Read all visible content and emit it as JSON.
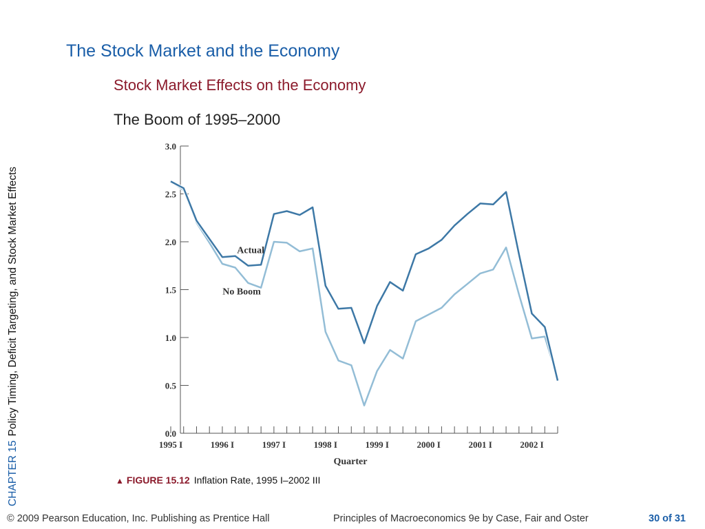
{
  "slide": {
    "title": "The Stock Market and the Economy",
    "section": "Stock Market Effects on the Economy",
    "subsection": "The Boom of 1995–2000",
    "sidebar": {
      "chapter": "CHAPTER 15",
      "chapter_title": "Policy Timing, Deficit Targeting, and Stock Market Effects"
    },
    "figure": {
      "label": "FIGURE 15.12",
      "caption": "Inflation Rate, 1995 I–2002 III"
    },
    "footer": {
      "copyright": "© 2009 Pearson Education, Inc. Publishing as Prentice Hall",
      "book": "Principles of Macroeconomics 9e by Case, Fair and Oster",
      "page": "30 of 31"
    },
    "colors": {
      "title": "#1a5ea8",
      "section": "#8b1a2b",
      "actual_line": "#3d78a6",
      "noboom_line": "#93bdd6"
    }
  },
  "chart_data": {
    "type": "line",
    "title": "",
    "xlabel": "Quarter",
    "ylabel": "",
    "ylim": [
      0,
      3.0
    ],
    "yticks": [
      0.0,
      0.5,
      1.0,
      1.5,
      2.0,
      2.5,
      3.0
    ],
    "ytick_labels": [
      "0.0",
      "0.5",
      "1.0",
      "1.5",
      "2.0",
      "2.5",
      "3.0"
    ],
    "xtick_labels": [
      {
        "label": "1995 I",
        "index": 0
      },
      {
        "label": "1996 I",
        "index": 4
      },
      {
        "label": "1997 I",
        "index": 8
      },
      {
        "label": "1998 I",
        "index": 12
      },
      {
        "label": "1999 I",
        "index": 16
      },
      {
        "label": "2000 I",
        "index": 20
      },
      {
        "label": "2001 I",
        "index": 24
      },
      {
        "label": "2002 I",
        "index": 28
      }
    ],
    "x": [
      "1995 I",
      "1995 II",
      "1995 III",
      "1995 IV",
      "1996 I",
      "1996 II",
      "1996 III",
      "1996 IV",
      "1997 I",
      "1997 II",
      "1997 III",
      "1997 IV",
      "1998 I",
      "1998 II",
      "1998 III",
      "1998 IV",
      "1999 I",
      "1999 II",
      "1999 III",
      "1999 IV",
      "2000 I",
      "2000 II",
      "2000 III",
      "2000 IV",
      "2001 I",
      "2001 II",
      "2001 III",
      "2001 IV",
      "2002 I",
      "2002 II",
      "2002 III"
    ],
    "series": [
      {
        "name": "Actual",
        "values": [
          2.63,
          2.56,
          2.22,
          2.03,
          1.84,
          1.85,
          1.75,
          1.76,
          2.29,
          2.32,
          2.28,
          2.36,
          1.54,
          1.3,
          1.31,
          0.94,
          1.33,
          1.58,
          1.49,
          1.87,
          1.93,
          2.02,
          2.17,
          2.29,
          2.4,
          2.39,
          2.52,
          1.87,
          1.25,
          1.11,
          0.55
        ]
      },
      {
        "name": "No Boom",
        "values": [
          2.63,
          2.54,
          2.2,
          1.99,
          1.77,
          1.73,
          1.57,
          1.52,
          2.0,
          1.99,
          1.9,
          1.93,
          1.06,
          0.76,
          0.71,
          0.29,
          0.65,
          0.87,
          0.78,
          1.17,
          1.24,
          1.31,
          1.45,
          1.56,
          1.67,
          1.71,
          1.94,
          1.45,
          0.99,
          1.01,
          0.57
        ]
      }
    ],
    "annotations": [
      {
        "text": "Actual",
        "series": "Actual"
      },
      {
        "text": "No Boom",
        "series": "No Boom"
      }
    ],
    "grid": false,
    "legend": "none"
  }
}
